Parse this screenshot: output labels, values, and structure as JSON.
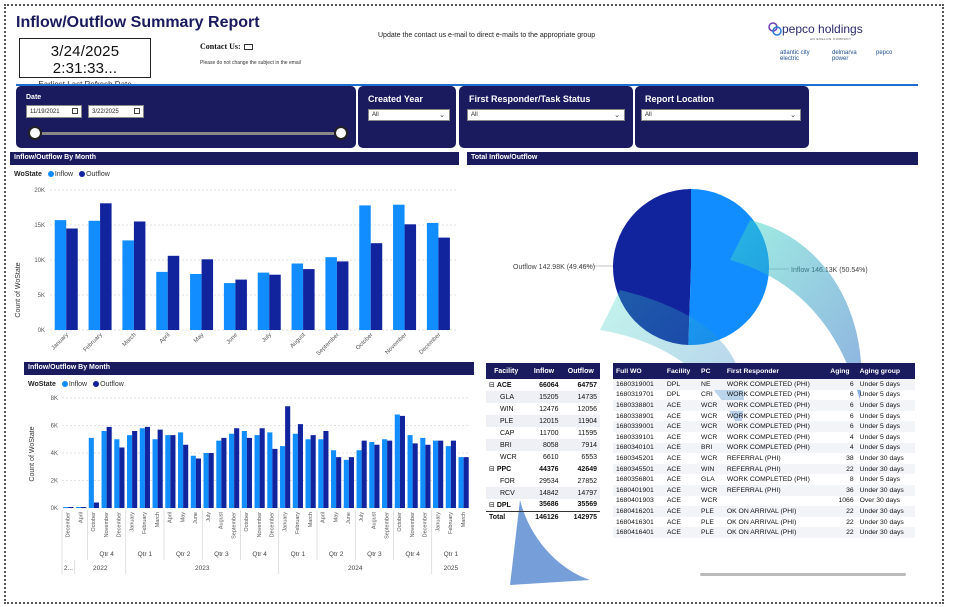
{
  "header": {
    "title": "Inflow/Outflow Summary Report",
    "refresh_time": "3/24/2025 2:31:33...",
    "refresh_label": "Earliest Last Refresh Date",
    "contact_label": "Contact Us:",
    "contact_note": "Please do not change the subject in the email",
    "update_note": "Update the contact us e-mail to direct e-mails to the appropriate group"
  },
  "logo": {
    "brand": "pepco holdings",
    "tagline": "AN EXELON COMPANY",
    "subs": [
      "atlantic city electric",
      "delmarva power",
      "pepco"
    ]
  },
  "filters": {
    "date": {
      "label": "Date",
      "start": "11/19/2021",
      "end": "3/22/2025"
    },
    "created_year": {
      "label": "Created Year",
      "value": "All"
    },
    "status": {
      "label": "First Responder/Task Status",
      "value": "All"
    },
    "location": {
      "label": "Report Location",
      "value": "All"
    }
  },
  "colors": {
    "inflow": "#118dff",
    "outflow": "#12239e",
    "header": "#1a1a5e"
  },
  "monthly": {
    "title": "Inflow/Outflow By Month",
    "legend_title": "WoState",
    "legend": [
      "Inflow",
      "Outflow"
    ],
    "ylabel": "Count of WoState"
  },
  "total": {
    "title": "Total Inflow/Outflow"
  },
  "timeline": {
    "title": "Inflow/Outflow By Month",
    "legend_title": "WoState",
    "legend": [
      "Inflow",
      "Outflow"
    ],
    "ylabel": "Count of WoState"
  },
  "chart_data": [
    {
      "type": "bar",
      "title": "Inflow/Outflow By Month",
      "ylabel": "Count of WoState",
      "ylim": [
        0,
        20000
      ],
      "yticks": [
        "0K",
        "5K",
        "10K",
        "15K",
        "20K"
      ],
      "categories": [
        "January",
        "February",
        "March",
        "April",
        "May",
        "June",
        "July",
        "August",
        "September",
        "October",
        "November",
        "December"
      ],
      "series": [
        {
          "name": "Inflow",
          "values": [
            15700,
            15600,
            12800,
            8300,
            8000,
            6700,
            8200,
            9500,
            10400,
            17800,
            17900,
            15300
          ]
        },
        {
          "name": "Outflow",
          "values": [
            14500,
            18100,
            15500,
            10600,
            10100,
            7200,
            7900,
            8700,
            9800,
            12400,
            15100,
            13200
          ]
        }
      ],
      "legend": "top-left"
    },
    {
      "type": "pie",
      "title": "Total Inflow/Outflow",
      "slices": [
        {
          "name": "Outflow",
          "label": "Outflow 142.98K (49.46%)",
          "value": 142980
        },
        {
          "name": "Inflow",
          "label": "Inflow 146.13K (50.54%)",
          "value": 146130
        }
      ]
    },
    {
      "type": "bar",
      "title": "Inflow/Outflow By Month",
      "ylabel": "Count of WoState",
      "ylim": [
        0,
        8000
      ],
      "yticks": [
        "0K",
        "2K",
        "4K",
        "6K",
        "8K"
      ],
      "categories": [
        "December",
        "April",
        "October",
        "November",
        "December",
        "January",
        "February",
        "March",
        "April",
        "May",
        "June",
        "July",
        "August",
        "September",
        "October",
        "November",
        "December",
        "January",
        "February",
        "March",
        "April",
        "May",
        "June",
        "July",
        "August",
        "September",
        "October",
        "November",
        "December",
        "January",
        "February",
        "March"
      ],
      "quarters": [
        {
          "label": "",
          "span": 2
        },
        {
          "label": "Qtr 4",
          "span": 3
        },
        {
          "label": "Qtr 1",
          "span": 3
        },
        {
          "label": "Qtr 2",
          "span": 3
        },
        {
          "label": "Qtr 3",
          "span": 3
        },
        {
          "label": "Qtr 4",
          "span": 3
        },
        {
          "label": "Qtr 1",
          "span": 3
        },
        {
          "label": "Qtr 2",
          "span": 3
        },
        {
          "label": "Qtr 3",
          "span": 3
        },
        {
          "label": "Qtr 4",
          "span": 3
        },
        {
          "label": "Qtr 1",
          "span": 3
        }
      ],
      "years": [
        {
          "label": "2...",
          "span": 1
        },
        {
          "label": "2022",
          "span": 4
        },
        {
          "label": "2023",
          "span": 12
        },
        {
          "label": "2024",
          "span": 12
        },
        {
          "label": "2025",
          "span": 3
        }
      ],
      "series": [
        {
          "name": "Inflow",
          "values": [
            0,
            0,
            5100,
            5600,
            5000,
            5300,
            5800,
            5000,
            5300,
            5500,
            3800,
            4000,
            4900,
            5400,
            5600,
            5300,
            5500,
            4500,
            5400,
            5000,
            5000,
            4200,
            3500,
            4200,
            4800,
            5000,
            6800,
            5300,
            5100,
            4900,
            4500,
            3700
          ]
        },
        {
          "name": "Outflow",
          "values": [
            0,
            0,
            400,
            5900,
            4400,
            5600,
            5900,
            5700,
            5300,
            4600,
            3600,
            4000,
            5100,
            5800,
            5100,
            5800,
            4300,
            7400,
            6100,
            5300,
            5600,
            3700,
            3700,
            4900,
            4600,
            4900,
            6700,
            4700,
            4600,
            4900,
            4900,
            3700
          ]
        }
      ],
      "legend": "top-left"
    }
  ],
  "facility_table": {
    "columns": [
      "Facility",
      "Inflow",
      "Outflow"
    ],
    "rows": [
      {
        "facility": "ACE",
        "inflow": "66064",
        "outflow": "64757",
        "group": true
      },
      {
        "facility": "GLA",
        "inflow": "15205",
        "outflow": "14735"
      },
      {
        "facility": "WIN",
        "inflow": "12476",
        "outflow": "12056"
      },
      {
        "facility": "PLE",
        "inflow": "12015",
        "outflow": "11904"
      },
      {
        "facility": "CAP",
        "inflow": "11700",
        "outflow": "11595"
      },
      {
        "facility": "BRI",
        "inflow": "8058",
        "outflow": "7914"
      },
      {
        "facility": "WCR",
        "inflow": "6610",
        "outflow": "6553"
      },
      {
        "facility": "PPC",
        "inflow": "44376",
        "outflow": "42649",
        "group": true
      },
      {
        "facility": "FOR",
        "inflow": "29534",
        "outflow": "27852"
      },
      {
        "facility": "RCV",
        "inflow": "14842",
        "outflow": "14797"
      },
      {
        "facility": "DPL",
        "inflow": "35686",
        "outflow": "35569",
        "group": true
      }
    ],
    "total": {
      "facility": "Total",
      "inflow": "146126",
      "outflow": "142975"
    }
  },
  "wo_table": {
    "columns": [
      "Full WO",
      "Facility",
      "PC",
      "First Responder",
      "Aging",
      "Aging group"
    ],
    "rows": [
      [
        "1680319001",
        "DPL",
        "NE",
        "WORK COMPLETED (PHI)",
        "6",
        "Under 5 days"
      ],
      [
        "1680319701",
        "DPL",
        "CRI",
        "WORK COMPLETED (PHI)",
        "6",
        "Under 5 days"
      ],
      [
        "1680338801",
        "ACE",
        "WCR",
        "WORK COMPLETED (PHI)",
        "6",
        "Under 5 days"
      ],
      [
        "1680338901",
        "ACE",
        "WCR",
        "WORK COMPLETED (PHI)",
        "6",
        "Under 5 days"
      ],
      [
        "1680339001",
        "ACE",
        "WCR",
        "WORK COMPLETED (PHI)",
        "6",
        "Under 5 days"
      ],
      [
        "1680339101",
        "ACE",
        "WCR",
        "WORK COMPLETED (PHI)",
        "4",
        "Under 5 days"
      ],
      [
        "1680340101",
        "ACE",
        "BRI",
        "WORK COMPLETED (PHI)",
        "4",
        "Under 5 days"
      ],
      [
        "1680345201",
        "ACE",
        "WCR",
        "REFERRAL (PHI)",
        "38",
        "Under 30 days"
      ],
      [
        "1680345501",
        "ACE",
        "WIN",
        "REFERRAL (PHI)",
        "22",
        "Under 30 days"
      ],
      [
        "1680356801",
        "ACE",
        "GLA",
        "WORK COMPLETED (PHI)",
        "8",
        "Under 5 days"
      ],
      [
        "1680401901",
        "ACE",
        "WCR",
        "REFERRAL (PHI)",
        "36",
        "Under 30 days"
      ],
      [
        "1680401903",
        "ACE",
        "WCR",
        "",
        "1066",
        "Over 30 days"
      ],
      [
        "1680416201",
        "ACE",
        "PLE",
        "OK ON ARRIVAL (PHI)",
        "22",
        "Under 30 days"
      ],
      [
        "1680416301",
        "ACE",
        "PLE",
        "OK ON ARRIVAL (PHI)",
        "22",
        "Under 30 days"
      ],
      [
        "1680416401",
        "ACE",
        "PLE",
        "OK ON ARRIVAL (PHI)",
        "22",
        "Under 30 days"
      ]
    ]
  }
}
